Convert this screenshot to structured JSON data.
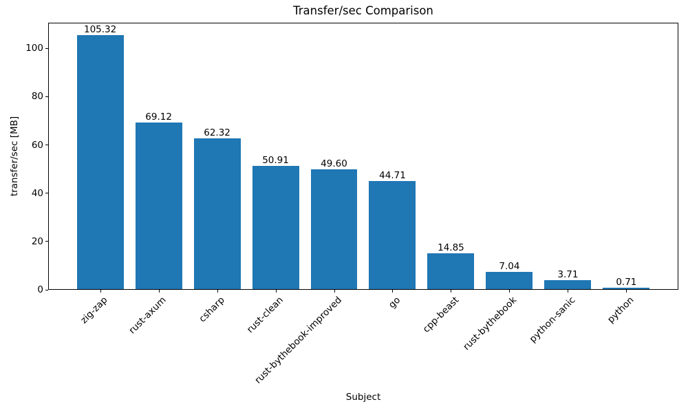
{
  "chart_data": {
    "type": "bar",
    "title": "Transfer/sec Comparison",
    "xlabel": "Subject",
    "ylabel": "transfer/sec [MB]",
    "categories": [
      "zig-zap",
      "rust-axum",
      "csharp",
      "rust-clean",
      "rust-bythebook-improved",
      "go",
      "cpp-beast",
      "rust-bythebook",
      "python-sanic",
      "python"
    ],
    "values": [
      105.32,
      69.12,
      62.32,
      50.91,
      49.6,
      44.71,
      14.85,
      7.04,
      3.71,
      0.71
    ],
    "value_labels": [
      "105.32",
      "69.12",
      "62.32",
      "50.91",
      "49.60",
      "44.71",
      "14.85",
      "7.04",
      "3.71",
      "0.71"
    ],
    "yticks": [
      0,
      20,
      40,
      60,
      80,
      100
    ],
    "ytick_labels": [
      "0",
      "20",
      "40",
      "60",
      "80",
      "100"
    ],
    "ylim": [
      0,
      110.6
    ],
    "bar_color": "#1f77b4",
    "text_color": "#000000",
    "grid": false,
    "legend": null,
    "x_tick_rotation_deg": 45
  }
}
